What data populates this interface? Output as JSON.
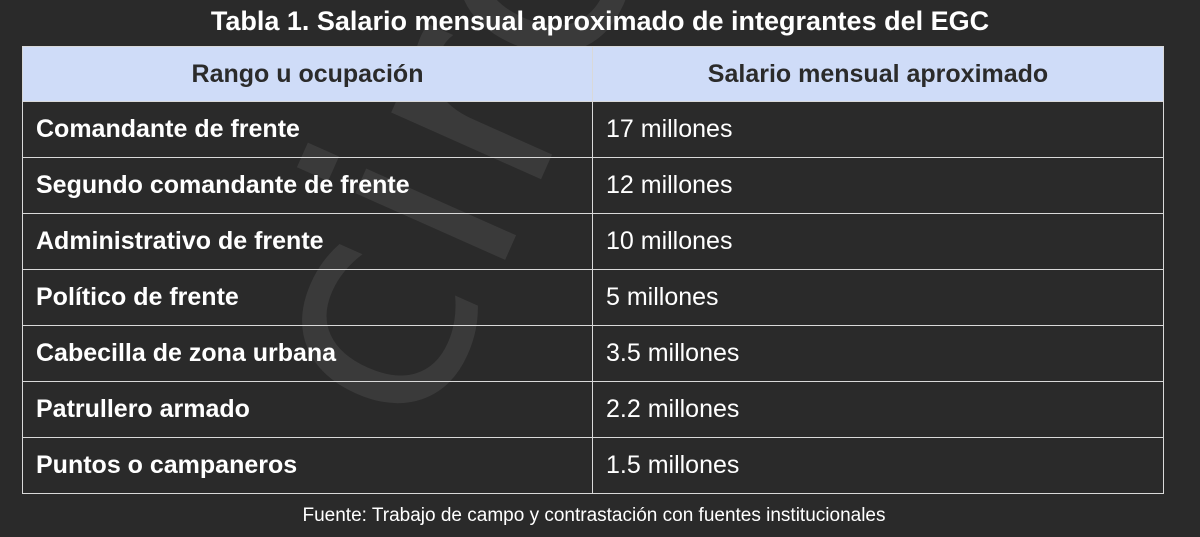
{
  "title": "Tabla 1. Salario mensual aproximado de integrantes del EGC",
  "table": {
    "headers": [
      "Rango u ocupación",
      "Salario mensual aproximado"
    ],
    "rows": [
      [
        "Comandante de frente",
        "17 millones"
      ],
      [
        "Segundo comandante de frente",
        "12 millones"
      ],
      [
        "Administrativo de frente",
        "10 millones"
      ],
      [
        "Político de frente",
        "5 millones"
      ],
      [
        "Cabecilla de zona urbana",
        "3.5 millones"
      ],
      [
        "Patrullero armado",
        "2.2 millones"
      ],
      [
        "Puntos o campaneros",
        "1.5 millones"
      ]
    ]
  },
  "source": "Fuente: Trabajo de campo y contrastación con fuentes institucionales",
  "watermark": "circular",
  "colors": {
    "background": "#2a2a2a",
    "header_bg": "#cfdcf8",
    "border": "#d9d9d9",
    "text": "#ffffff"
  }
}
